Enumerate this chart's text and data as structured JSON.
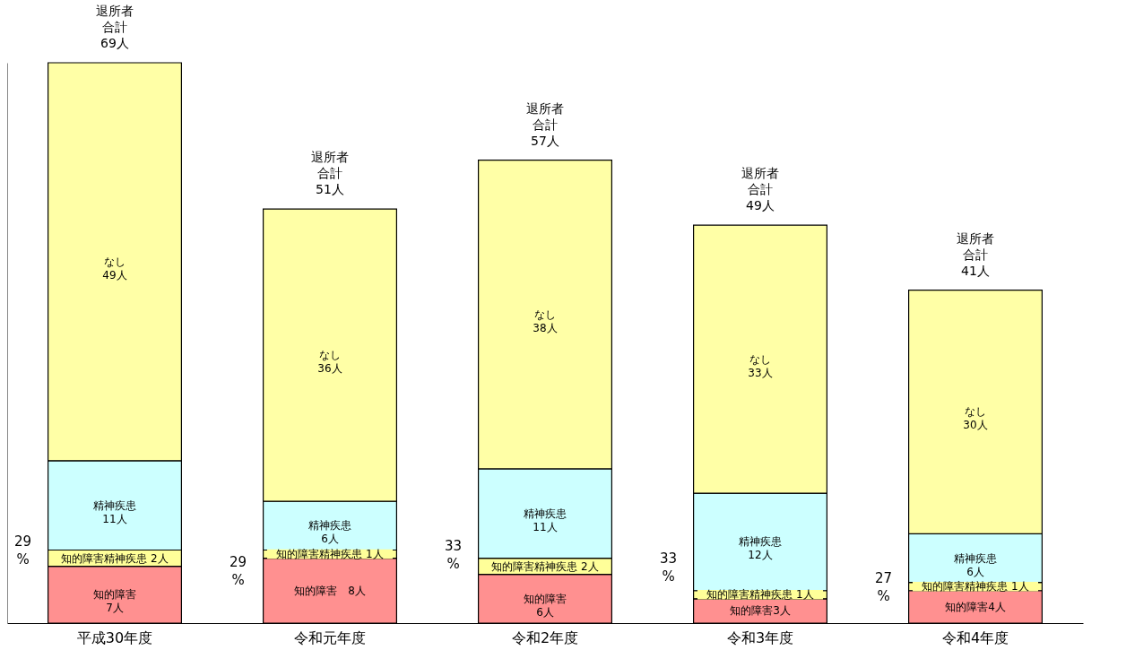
{
  "chart_data": {
    "type": "bar",
    "stacked": true,
    "categories": [
      "平成30年度",
      "令和元年度",
      "令和2年度",
      "令和3年度",
      "令和4年度"
    ],
    "series": [
      {
        "color": "#ff9090",
        "values": [
          7,
          8,
          6,
          3,
          4
        ],
        "value_labels": [
          "知的障害7人",
          "知的障害　8人",
          "知的障害6人",
          "知的障害3人",
          "知的障害4人"
        ]
      },
      {
        "color": "#ffff99",
        "values": [
          2,
          1,
          2,
          1,
          1
        ],
        "value_labels": [
          "知的障害精神疾患  2人",
          "知的障害精神疾患  1人",
          "知的障害精神疾患  2人",
          "知的障害精神疾患  1人",
          "知的障害精神疾患  1人"
        ]
      },
      {
        "color": "#ccffff",
        "values": [
          11,
          6,
          11,
          12,
          6
        ],
        "value_labels": [
          "精神疾患11人",
          "精神疾患6人",
          "精神疾患11人",
          "精神疾患12人",
          "精神疾患6人"
        ]
      },
      {
        "color": "#ffffa6",
        "values": [
          49,
          36,
          38,
          33,
          30
        ],
        "value_labels": [
          "なし49人",
          "なし36人",
          "なし38人",
          "なし33人",
          "なし30人"
        ]
      }
    ],
    "totals": [
      "退所者合計69人",
      "退所者合計51人",
      "退所者合計57人",
      "退所者合計49人",
      "退所者合計41人"
    ],
    "annotations": [
      "29 %",
      "29 %",
      "33 %",
      "33 %",
      "27 %"
    ],
    "tick_labels": "x",
    "grid": false
  }
}
